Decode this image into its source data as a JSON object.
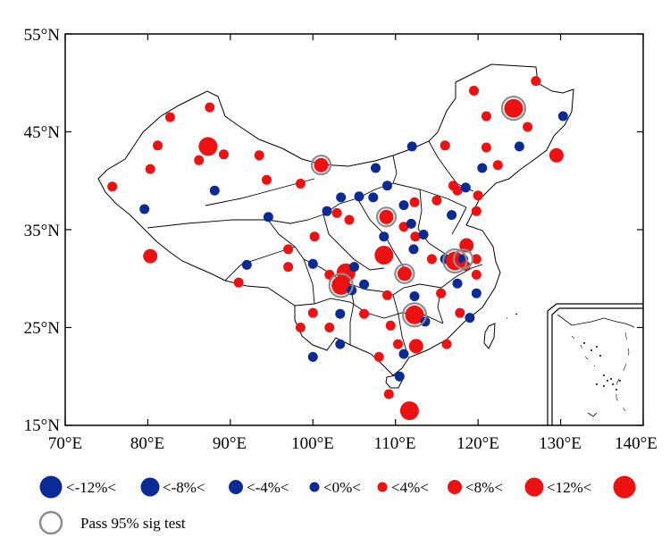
{
  "axes": {
    "x_ticks": [
      "70°E",
      "80°E",
      "90°E",
      "100°E",
      "110°E",
      "120°E",
      "130°E",
      "140°E"
    ],
    "x_values": [
      70,
      80,
      90,
      100,
      110,
      120,
      130,
      140
    ],
    "y_ticks": [
      "55°N",
      "45°N",
      "35°N",
      "25°N",
      "15°N"
    ],
    "y_values": [
      55,
      45,
      35,
      25,
      15
    ],
    "lon_range": [
      70,
      140
    ],
    "lat_range": [
      15,
      55
    ]
  },
  "colors": {
    "negative": "#0a2a96",
    "positive": "#ee1111",
    "sig_ring": "#8c8c8c",
    "boundary": "#000000"
  },
  "legend": {
    "labels": [
      "<-12%<",
      "<-8%<",
      "<-4%<",
      "<0%<",
      "<4%<",
      "<8%<",
      "<12%<"
    ],
    "sig_label": "Pass 95% sig test"
  },
  "map_data": {
    "type": "station-bubble-map",
    "classes": [
      "<-12%",
      "-12% to -8%",
      "-8% to -4%",
      "-4% to 0%",
      "0% to 4%",
      "4% to 8%",
      "8% to 12%",
      ">12%"
    ],
    "stations": [
      {
        "lon": 75.7,
        "lat": 39.4,
        "cls": 4
      },
      {
        "lon": 79.6,
        "lat": 37.1,
        "cls": 3
      },
      {
        "lon": 80.3,
        "lat": 41.2,
        "cls": 4
      },
      {
        "lon": 81.2,
        "lat": 43.6,
        "cls": 4
      },
      {
        "lon": 82.7,
        "lat": 46.5,
        "cls": 4
      },
      {
        "lon": 80.3,
        "lat": 32.3,
        "cls": 5
      },
      {
        "lon": 87.5,
        "lat": 47.5,
        "cls": 4
      },
      {
        "lon": 87.3,
        "lat": 43.5,
        "cls": 6
      },
      {
        "lon": 86.2,
        "lat": 42.1,
        "cls": 4
      },
      {
        "lon": 89.2,
        "lat": 42.7,
        "cls": 4
      },
      {
        "lon": 88.1,
        "lat": 39.0,
        "cls": 3
      },
      {
        "lon": 93.5,
        "lat": 42.6,
        "cls": 4
      },
      {
        "lon": 94.4,
        "lat": 40.1,
        "cls": 4
      },
      {
        "lon": 94.6,
        "lat": 36.3,
        "cls": 3
      },
      {
        "lon": 98.5,
        "lat": 39.7,
        "cls": 4
      },
      {
        "lon": 101.0,
        "lat": 41.6,
        "cls": 5,
        "sig": true
      },
      {
        "lon": 97.0,
        "lat": 33.0,
        "cls": 4
      },
      {
        "lon": 97.0,
        "lat": 31.2,
        "cls": 4
      },
      {
        "lon": 92.0,
        "lat": 31.4,
        "cls": 3
      },
      {
        "lon": 91.0,
        "lat": 29.6,
        "cls": 4
      },
      {
        "lon": 103.4,
        "lat": 38.3,
        "cls": 3
      },
      {
        "lon": 102.9,
        "lat": 36.7,
        "cls": 4
      },
      {
        "lon": 105.6,
        "lat": 38.4,
        "cls": 3
      },
      {
        "lon": 104.4,
        "lat": 36.0,
        "cls": 4
      },
      {
        "lon": 101.7,
        "lat": 36.9,
        "cls": 3
      },
      {
        "lon": 100.2,
        "lat": 34.3,
        "cls": 4
      },
      {
        "lon": 100.0,
        "lat": 31.5,
        "cls": 3
      },
      {
        "lon": 102.0,
        "lat": 30.4,
        "cls": 4
      },
      {
        "lon": 103.4,
        "lat": 29.3,
        "cls": 6,
        "sig": true
      },
      {
        "lon": 104.0,
        "lat": 30.6,
        "cls": 6
      },
      {
        "lon": 105.0,
        "lat": 31.2,
        "cls": 3
      },
      {
        "lon": 104.7,
        "lat": 28.8,
        "cls": 3
      },
      {
        "lon": 106.2,
        "lat": 29.4,
        "cls": 3
      },
      {
        "lon": 103.3,
        "lat": 26.4,
        "cls": 3
      },
      {
        "lon": 100.0,
        "lat": 26.5,
        "cls": 4
      },
      {
        "lon": 102.0,
        "lat": 25.0,
        "cls": 4
      },
      {
        "lon": 98.5,
        "lat": 25.0,
        "cls": 4
      },
      {
        "lon": 100.0,
        "lat": 22.0,
        "cls": 3
      },
      {
        "lon": 103.3,
        "lat": 23.3,
        "cls": 3
      },
      {
        "lon": 106.2,
        "lat": 26.4,
        "cls": 4
      },
      {
        "lon": 107.6,
        "lat": 41.3,
        "cls": 3
      },
      {
        "lon": 107.3,
        "lat": 38.3,
        "cls": 3
      },
      {
        "lon": 109.0,
        "lat": 39.5,
        "cls": 3
      },
      {
        "lon": 108.9,
        "lat": 36.3,
        "cls": 5,
        "sig": true
      },
      {
        "lon": 108.6,
        "lat": 34.3,
        "cls": 3
      },
      {
        "lon": 108.6,
        "lat": 32.4,
        "cls": 6
      },
      {
        "lon": 111.0,
        "lat": 35.3,
        "cls": 4
      },
      {
        "lon": 112.4,
        "lat": 34.3,
        "cls": 4
      },
      {
        "lon": 111.9,
        "lat": 35.6,
        "cls": 3
      },
      {
        "lon": 111.0,
        "lat": 37.5,
        "cls": 3
      },
      {
        "lon": 112.3,
        "lat": 37.8,
        "cls": 4
      },
      {
        "lon": 112.0,
        "lat": 43.5,
        "cls": 3
      },
      {
        "lon": 112.2,
        "lat": 33.0,
        "cls": 3
      },
      {
        "lon": 113.4,
        "lat": 34.5,
        "cls": 3
      },
      {
        "lon": 111.1,
        "lat": 30.5,
        "cls": 5,
        "sig": true
      },
      {
        "lon": 112.3,
        "lat": 28.2,
        "cls": 3
      },
      {
        "lon": 112.3,
        "lat": 26.3,
        "cls": 6,
        "sig": true
      },
      {
        "lon": 113.6,
        "lat": 25.6,
        "cls": 3
      },
      {
        "lon": 109.0,
        "lat": 28.3,
        "cls": 4
      },
      {
        "lon": 109.4,
        "lat": 25.2,
        "cls": 4
      },
      {
        "lon": 110.3,
        "lat": 23.3,
        "cls": 4
      },
      {
        "lon": 112.5,
        "lat": 23.1,
        "cls": 5
      },
      {
        "lon": 110.5,
        "lat": 20.0,
        "cls": 3
      },
      {
        "lon": 109.2,
        "lat": 18.2,
        "cls": 4
      },
      {
        "lon": 111.7,
        "lat": 16.5,
        "cls": 6
      },
      {
        "lon": 111.0,
        "lat": 22.3,
        "cls": 3
      },
      {
        "lon": 108.0,
        "lat": 22.0,
        "cls": 4
      },
      {
        "lon": 115.0,
        "lat": 38.0,
        "cls": 4
      },
      {
        "lon": 114.4,
        "lat": 32.0,
        "cls": 4
      },
      {
        "lon": 115.5,
        "lat": 28.5,
        "cls": 4
      },
      {
        "lon": 116.0,
        "lat": 32.0,
        "cls": 3
      },
      {
        "lon": 116.2,
        "lat": 23.3,
        "cls": 4
      },
      {
        "lon": 116.0,
        "lat": 43.6,
        "cls": 4
      },
      {
        "lon": 117.2,
        "lat": 31.8,
        "cls": 6,
        "sig": true
      },
      {
        "lon": 118.2,
        "lat": 32.0,
        "cls": 3,
        "sig": true
      },
      {
        "lon": 118.6,
        "lat": 33.4,
        "cls": 5
      },
      {
        "lon": 118.5,
        "lat": 31.3,
        "cls": 4
      },
      {
        "lon": 117.5,
        "lat": 29.5,
        "cls": 3
      },
      {
        "lon": 117.8,
        "lat": 26.5,
        "cls": 4
      },
      {
        "lon": 116.8,
        "lat": 36.5,
        "cls": 3
      },
      {
        "lon": 117.0,
        "lat": 39.5,
        "cls": 4
      },
      {
        "lon": 117.5,
        "lat": 39.0,
        "cls": 4
      },
      {
        "lon": 118.5,
        "lat": 39.3,
        "cls": 3
      },
      {
        "lon": 119.8,
        "lat": 30.4,
        "cls": 4
      },
      {
        "lon": 119.8,
        "lat": 32.0,
        "cls": 4
      },
      {
        "lon": 119.8,
        "lat": 36.9,
        "cls": 4
      },
      {
        "lon": 119.8,
        "lat": 28.5,
        "cls": 3
      },
      {
        "lon": 119.0,
        "lat": 26.0,
        "cls": 3
      },
      {
        "lon": 120.0,
        "lat": 38.5,
        "cls": 4
      },
      {
        "lon": 120.5,
        "lat": 41.3,
        "cls": 3
      },
      {
        "lon": 121.0,
        "lat": 46.6,
        "cls": 4
      },
      {
        "lon": 121.0,
        "lat": 43.4,
        "cls": 4
      },
      {
        "lon": 122.4,
        "lat": 41.6,
        "cls": 4
      },
      {
        "lon": 119.5,
        "lat": 49.2,
        "cls": 4
      },
      {
        "lon": 124.3,
        "lat": 47.4,
        "cls": 6,
        "sig": true
      },
      {
        "lon": 125.0,
        "lat": 43.5,
        "cls": 3
      },
      {
        "lon": 126.0,
        "lat": 45.5,
        "cls": 4
      },
      {
        "lon": 127.0,
        "lat": 50.2,
        "cls": 4
      },
      {
        "lon": 129.5,
        "lat": 42.6,
        "cls": 5
      },
      {
        "lon": 130.3,
        "lat": 46.6,
        "cls": 3
      }
    ]
  }
}
